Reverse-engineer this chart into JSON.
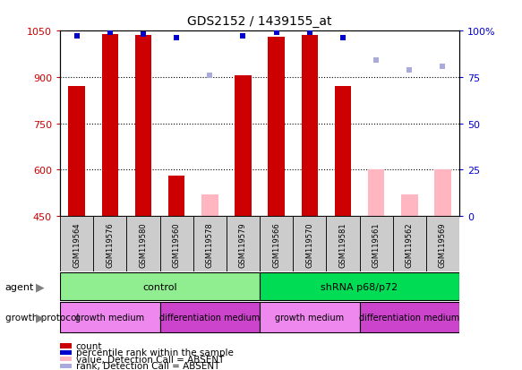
{
  "title": "GDS2152 / 1439155_at",
  "samples": [
    "GSM119564",
    "GSM119576",
    "GSM119580",
    "GSM119560",
    "GSM119578",
    "GSM119579",
    "GSM119566",
    "GSM119570",
    "GSM119581",
    "GSM119561",
    "GSM119562",
    "GSM119569"
  ],
  "count_values": [
    870,
    1040,
    1035,
    580,
    null,
    905,
    1030,
    1035,
    870,
    null,
    null,
    null
  ],
  "absent_values": [
    null,
    null,
    null,
    null,
    520,
    null,
    null,
    null,
    null,
    600,
    520,
    600
  ],
  "percentile_present": [
    97,
    99,
    98,
    96,
    null,
    97,
    99,
    99,
    96,
    null,
    null,
    null
  ],
  "percentile_absent": [
    null,
    null,
    null,
    null,
    76,
    null,
    null,
    null,
    null,
    84,
    79,
    81
  ],
  "ylim_left": [
    450,
    1050
  ],
  "ylim_right": [
    0,
    100
  ],
  "yticks_left": [
    450,
    600,
    750,
    900,
    1050
  ],
  "yticks_right": [
    0,
    25,
    50,
    75,
    100
  ],
  "agent_groups": [
    {
      "label": "control",
      "start": 0,
      "end": 6,
      "color": "#90EE90"
    },
    {
      "label": "shRNA p68/p72",
      "start": 6,
      "end": 12,
      "color": "#00DD55"
    }
  ],
  "growth_groups": [
    {
      "label": "growth medium",
      "start": 0,
      "end": 3,
      "color": "#EE88EE"
    },
    {
      "label": "differentiation medium",
      "start": 3,
      "end": 6,
      "color": "#CC44CC"
    },
    {
      "label": "growth medium",
      "start": 6,
      "end": 9,
      "color": "#EE88EE"
    },
    {
      "label": "differentiation medium",
      "start": 9,
      "end": 12,
      "color": "#CC44CC"
    }
  ],
  "count_color": "#CC0000",
  "absent_bar_color": "#FFB6C1",
  "percentile_present_color": "#0000CC",
  "percentile_absent_color": "#AAAADD",
  "left_tick_color": "#CC0000",
  "right_tick_color": "#0000CC",
  "sample_box_color": "#CCCCCC",
  "legend_items": [
    {
      "color": "#CC0000",
      "label": "count"
    },
    {
      "color": "#0000CC",
      "label": "percentile rank within the sample"
    },
    {
      "color": "#FFB6C1",
      "label": "value, Detection Call = ABSENT"
    },
    {
      "color": "#AAAADD",
      "label": "rank, Detection Call = ABSENT"
    }
  ]
}
